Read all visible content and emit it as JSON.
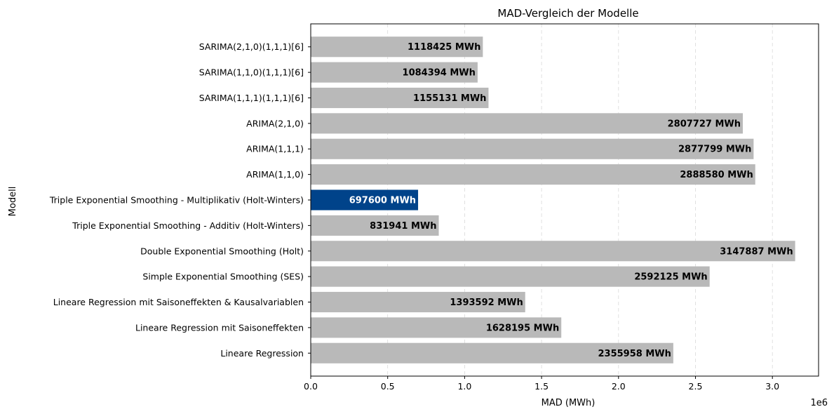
{
  "chart_data": {
    "type": "bar",
    "orientation": "horizontal",
    "title": "MAD-Vergleich der Modelle",
    "xlabel": "MAD (MWh)",
    "ylabel": "Modell",
    "x_scale_note": "1e6",
    "xlim": [
      0,
      3300000
    ],
    "xticks": [
      0,
      500000,
      1000000,
      1500000,
      2000000,
      2500000,
      3000000
    ],
    "xtick_labels": [
      "0.0",
      "0.5",
      "1.0",
      "1.5",
      "2.0",
      "2.5",
      "3.0"
    ],
    "grid": "x-dashed",
    "value_unit": "MWh",
    "bar_color": "#b9b9b9",
    "highlight_color": "#00438a",
    "highlight_index": 6,
    "categories": [
      "Lineare Regression",
      "Lineare Regression mit Saisoneffekten",
      "Lineare Regression mit Saisoneffekten & Kausalvariablen",
      "Simple Exponential Smoothing (SES)",
      "Double Exponential Smoothing (Holt)",
      "Triple Exponential Smoothing - Additiv (Holt-Winters)",
      "Triple Exponential Smoothing - Multiplikativ (Holt-Winters)",
      "ARIMA(1,1,0)",
      "ARIMA(1,1,1)",
      "ARIMA(2,1,0)",
      "SARIMA(1,1,1)(1,1,1)[6]",
      "SARIMA(1,1,0)(1,1,1)[6]",
      "SARIMA(2,1,0)(1,1,1)[6]"
    ],
    "values": [
      2355958,
      1628195,
      1393592,
      2592125,
      3147887,
      831941,
      697600,
      2888580,
      2877799,
      2807727,
      1155131,
      1084394,
      1118425
    ]
  }
}
